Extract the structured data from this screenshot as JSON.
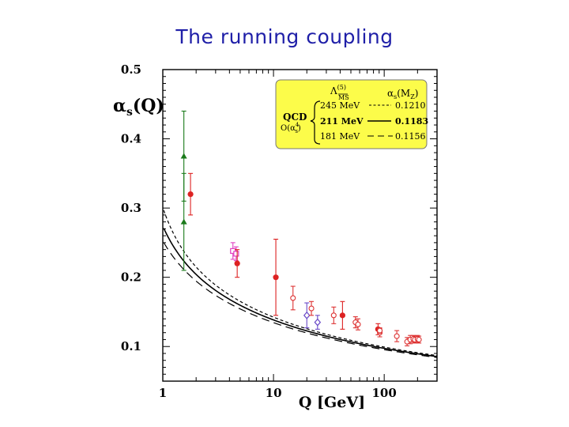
{
  "slide": {
    "title": "The running coupling"
  },
  "chart_data": {
    "type": "scatter",
    "title": "",
    "xlabel": "Q [GeV]",
    "ylabel_main": "α",
    "ylabel_sub": "s",
    "ylabel_tail": "(Q)",
    "x_scale": "log",
    "xlim": [
      1,
      300
    ],
    "ylim": [
      0.05,
      0.5
    ],
    "x_ticks": [
      {
        "value": 1,
        "label": "1"
      },
      {
        "value": 10,
        "label": "10"
      },
      {
        "value": 100,
        "label": "100"
      }
    ],
    "y_ticks": [
      {
        "value": 0.1,
        "label": "0.1"
      },
      {
        "value": 0.2,
        "label": "0.2"
      },
      {
        "value": 0.3,
        "label": "0.3"
      },
      {
        "value": 0.4,
        "label": "0.4"
      },
      {
        "value": 0.5,
        "label": "0.5"
      }
    ],
    "legend": {
      "placement": "top-right",
      "background": "#fcfc4a",
      "header_lambda": "Λ",
      "header_lambda_sup": "(5)",
      "header_lambda_sub": "MS",
      "header_alpha": "α",
      "header_alpha_sub": "s",
      "header_alpha_tail": "(M",
      "header_alpha_z": "Z",
      "header_alpha_close": ")",
      "group_label": "QCD",
      "order_label": "O(α",
      "order_sup": "4",
      "order_sub": "s",
      "order_close": ")",
      "rows": [
        {
          "lambda": "245 MeV",
          "alpha": "0.1210",
          "style": "short-dash"
        },
        {
          "lambda": "211 MeV",
          "alpha": "0.1183",
          "style": "solid"
        },
        {
          "lambda": "181 MeV",
          "alpha": "0.1156",
          "style": "long-dash"
        }
      ]
    },
    "curves": [
      {
        "label": "245 MeV",
        "lambda_gev": 0.245,
        "style": "short-dash"
      },
      {
        "label": "211 MeV",
        "lambda_gev": 0.211,
        "style": "solid"
      },
      {
        "label": "181 MeV",
        "lambda_gev": 0.181,
        "style": "long-dash"
      }
    ],
    "points": [
      {
        "x": 1.55,
        "y": 0.375,
        "err": 0.065,
        "color": "#1a7a1a",
        "marker": "triangle"
      },
      {
        "x": 1.55,
        "y": 0.28,
        "err": 0.07,
        "color": "#1a7a1a",
        "marker": "triangle"
      },
      {
        "x": 1.78,
        "y": 0.32,
        "err": 0.03,
        "color": "#dd2222",
        "marker": "filled-circle"
      },
      {
        "x": 4.3,
        "y": 0.238,
        "err": 0.012,
        "color": "#e040c0",
        "marker": "open-square"
      },
      {
        "x": 4.6,
        "y": 0.234,
        "err": 0.01,
        "color": "#e040c0",
        "marker": "open-square"
      },
      {
        "x": 4.7,
        "y": 0.22,
        "err": 0.02,
        "color": "#dd2222",
        "marker": "filled-circle"
      },
      {
        "x": 10.5,
        "y": 0.2,
        "err": 0.055,
        "color": "#dd2222",
        "marker": "filled-circle"
      },
      {
        "x": 15,
        "y": 0.17,
        "err": 0.017,
        "color": "#dd3333",
        "marker": "open-circle"
      },
      {
        "x": 20,
        "y": 0.145,
        "err": 0.018,
        "color": "#6a4ac8",
        "marker": "open-diamond"
      },
      {
        "x": 22,
        "y": 0.155,
        "err": 0.01,
        "color": "#dd3333",
        "marker": "open-circle"
      },
      {
        "x": 25,
        "y": 0.135,
        "err": 0.01,
        "color": "#6a4ac8",
        "marker": "open-diamond"
      },
      {
        "x": 35,
        "y": 0.145,
        "err": 0.012,
        "color": "#dd3333",
        "marker": "open-circle"
      },
      {
        "x": 42,
        "y": 0.145,
        "err": 0.02,
        "color": "#dd2222",
        "marker": "filled-circle"
      },
      {
        "x": 55,
        "y": 0.135,
        "err": 0.008,
        "color": "#dd3333",
        "marker": "open-circle"
      },
      {
        "x": 58,
        "y": 0.132,
        "err": 0.008,
        "color": "#dd3333",
        "marker": "open-circle"
      },
      {
        "x": 88,
        "y": 0.125,
        "err": 0.008,
        "color": "#dd2222",
        "marker": "filled-circle"
      },
      {
        "x": 91.2,
        "y": 0.12,
        "err": 0.006,
        "color": "#dd3333",
        "marker": "open-circle"
      },
      {
        "x": 91.2,
        "y": 0.123,
        "err": 0.004,
        "color": "#dd3333",
        "marker": "open-circle"
      },
      {
        "x": 130,
        "y": 0.115,
        "err": 0.008,
        "color": "#dd3333",
        "marker": "open-circle"
      },
      {
        "x": 161,
        "y": 0.107,
        "err": 0.006,
        "color": "#dd3333",
        "marker": "open-circle"
      },
      {
        "x": 172,
        "y": 0.11,
        "err": 0.006,
        "color": "#dd3333",
        "marker": "open-circle"
      },
      {
        "x": 183,
        "y": 0.111,
        "err": 0.005,
        "color": "#dd3333",
        "marker": "open-circle"
      },
      {
        "x": 189,
        "y": 0.11,
        "err": 0.005,
        "color": "#dd3333",
        "marker": "open-circle"
      },
      {
        "x": 200,
        "y": 0.111,
        "err": 0.005,
        "color": "#dd3333",
        "marker": "open-circle"
      },
      {
        "x": 206,
        "y": 0.11,
        "err": 0.005,
        "color": "#dd3333",
        "marker": "open-circle"
      }
    ]
  }
}
